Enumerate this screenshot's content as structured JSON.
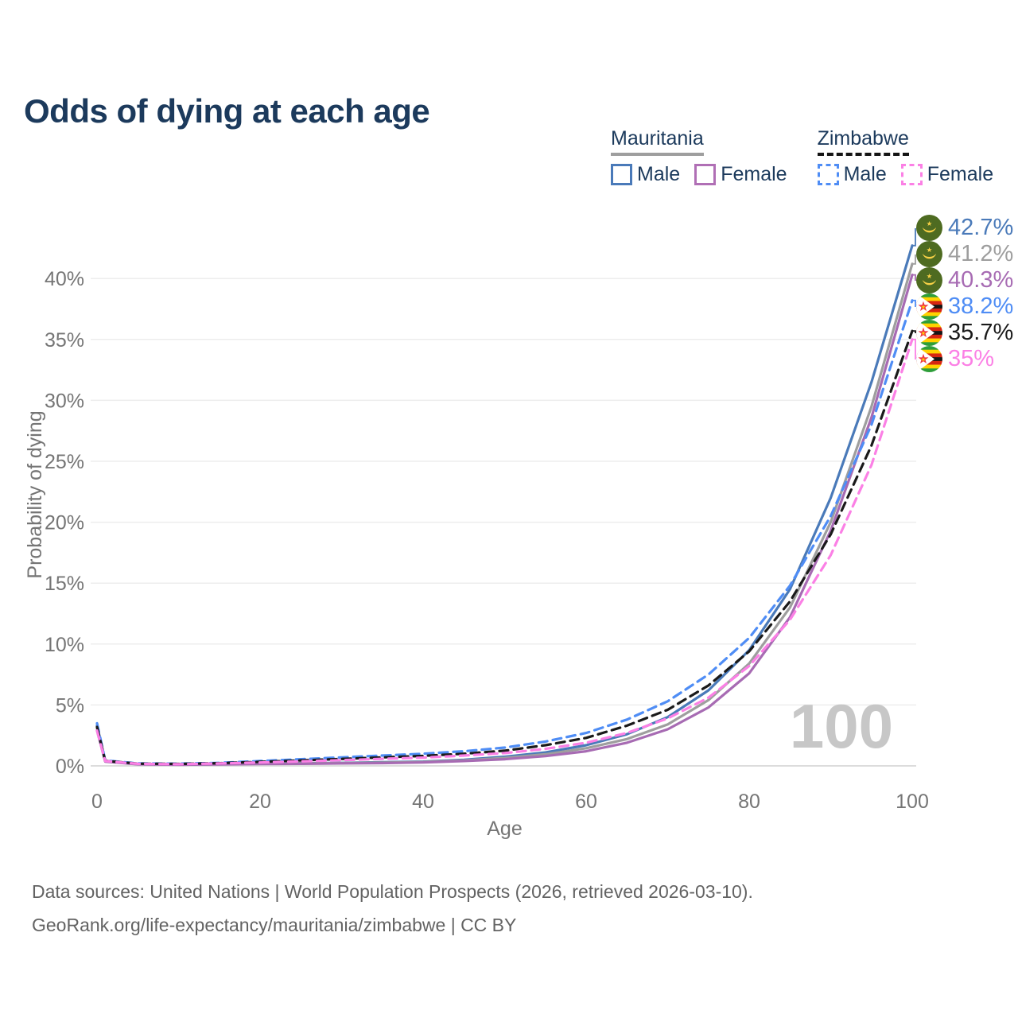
{
  "title": "Odds of dying at each age",
  "legend": {
    "groups": [
      {
        "label": "Mauritania",
        "line_color": "#9e9e9e",
        "line_style": "solid",
        "items": [
          {
            "label": "Male",
            "color": "#4a7ab9",
            "style": "solid"
          },
          {
            "label": "Female",
            "color": "#b06fb5",
            "style": "solid"
          }
        ]
      },
      {
        "label": "Zimbabwe",
        "line_color": "#141414",
        "line_style": "dashed",
        "items": [
          {
            "label": "Male",
            "color": "#4f8df5",
            "style": "dashed"
          },
          {
            "label": "Female",
            "color": "#fb80e5",
            "style": "dashed"
          }
        ]
      }
    ]
  },
  "chart_data": {
    "type": "line",
    "title": "Odds of dying at each age",
    "xlabel": "Age",
    "ylabel": "Probability of dying",
    "x_ticks": [
      0,
      20,
      40,
      60,
      80,
      100
    ],
    "y_ticks": [
      "0%",
      "5%",
      "10%",
      "15%",
      "20%",
      "25%",
      "30%",
      "35%",
      "40%"
    ],
    "xlim": [
      0,
      100
    ],
    "ylim": [
      0,
      44
    ],
    "grid": "horizontal",
    "legend_position": "top-right",
    "watermark": "100",
    "ages": [
      0,
      1,
      5,
      10,
      15,
      20,
      25,
      30,
      35,
      40,
      45,
      50,
      55,
      60,
      65,
      70,
      75,
      80,
      85,
      90,
      95,
      100
    ],
    "series": [
      {
        "name": "Mauritania Male",
        "flag": "mauritania",
        "color": "#4a7ab9",
        "dash": null,
        "end_label": "42.7%",
        "values": [
          3.3,
          0.4,
          0.15,
          0.12,
          0.15,
          0.2,
          0.22,
          0.25,
          0.3,
          0.35,
          0.5,
          0.75,
          1.1,
          1.7,
          2.6,
          4.0,
          6.2,
          9.5,
          14.5,
          22.0,
          31.5,
          42.7
        ]
      },
      {
        "name": "Mauritania Both sexes",
        "flag": "mauritania",
        "color": "#9e9e9e",
        "dash": null,
        "end_label": "41.2%",
        "values": [
          3.1,
          0.38,
          0.14,
          0.11,
          0.14,
          0.18,
          0.2,
          0.23,
          0.27,
          0.32,
          0.45,
          0.65,
          0.95,
          1.45,
          2.2,
          3.4,
          5.4,
          8.4,
          13.0,
          20.0,
          29.5,
          41.2
        ]
      },
      {
        "name": "Mauritania Female",
        "flag": "mauritania",
        "color": "#a76bb3",
        "dash": null,
        "end_label": "40.3%",
        "values": [
          2.9,
          0.35,
          0.13,
          0.1,
          0.12,
          0.15,
          0.17,
          0.2,
          0.23,
          0.28,
          0.4,
          0.55,
          0.8,
          1.2,
          1.9,
          3.0,
          4.8,
          7.6,
          12.2,
          19.3,
          28.6,
          40.3
        ]
      },
      {
        "name": "Zimbabwe Male",
        "flag": "zimbabwe",
        "color": "#4f8df5",
        "dash": "11 7",
        "end_label": "38.2%",
        "values": [
          3.5,
          0.45,
          0.2,
          0.18,
          0.25,
          0.4,
          0.55,
          0.7,
          0.85,
          1.0,
          1.2,
          1.5,
          2.0,
          2.7,
          3.8,
          5.3,
          7.5,
          10.5,
          14.8,
          20.5,
          28.0,
          38.2
        ]
      },
      {
        "name": "Zimbabwe Both sexes",
        "flag": "zimbabwe",
        "color": "#1a1a1a",
        "dash": "11 7",
        "end_label": "35.7%",
        "values": [
          3.2,
          0.42,
          0.18,
          0.16,
          0.22,
          0.33,
          0.45,
          0.57,
          0.7,
          0.82,
          1.0,
          1.25,
          1.7,
          2.3,
          3.3,
          4.6,
          6.6,
          9.4,
          13.5,
          19.0,
          26.3,
          35.7
        ]
      },
      {
        "name": "Zimbabwe Female",
        "flag": "zimbabwe",
        "color": "#fb80e5",
        "dash": "11 7",
        "end_label": "35%",
        "values": [
          2.9,
          0.4,
          0.17,
          0.14,
          0.2,
          0.28,
          0.37,
          0.47,
          0.58,
          0.68,
          0.85,
          1.05,
          1.4,
          1.9,
          2.7,
          3.9,
          5.6,
          8.2,
          12.0,
          17.3,
          24.7,
          35.0
        ]
      }
    ]
  },
  "footer": {
    "line1": "Data sources: United Nations | World Population Prospects (2026, retrieved 2026-03-10).",
    "line2": "GeoRank.org/life-expectancy/mauritania/zimbabwe | CC BY"
  }
}
